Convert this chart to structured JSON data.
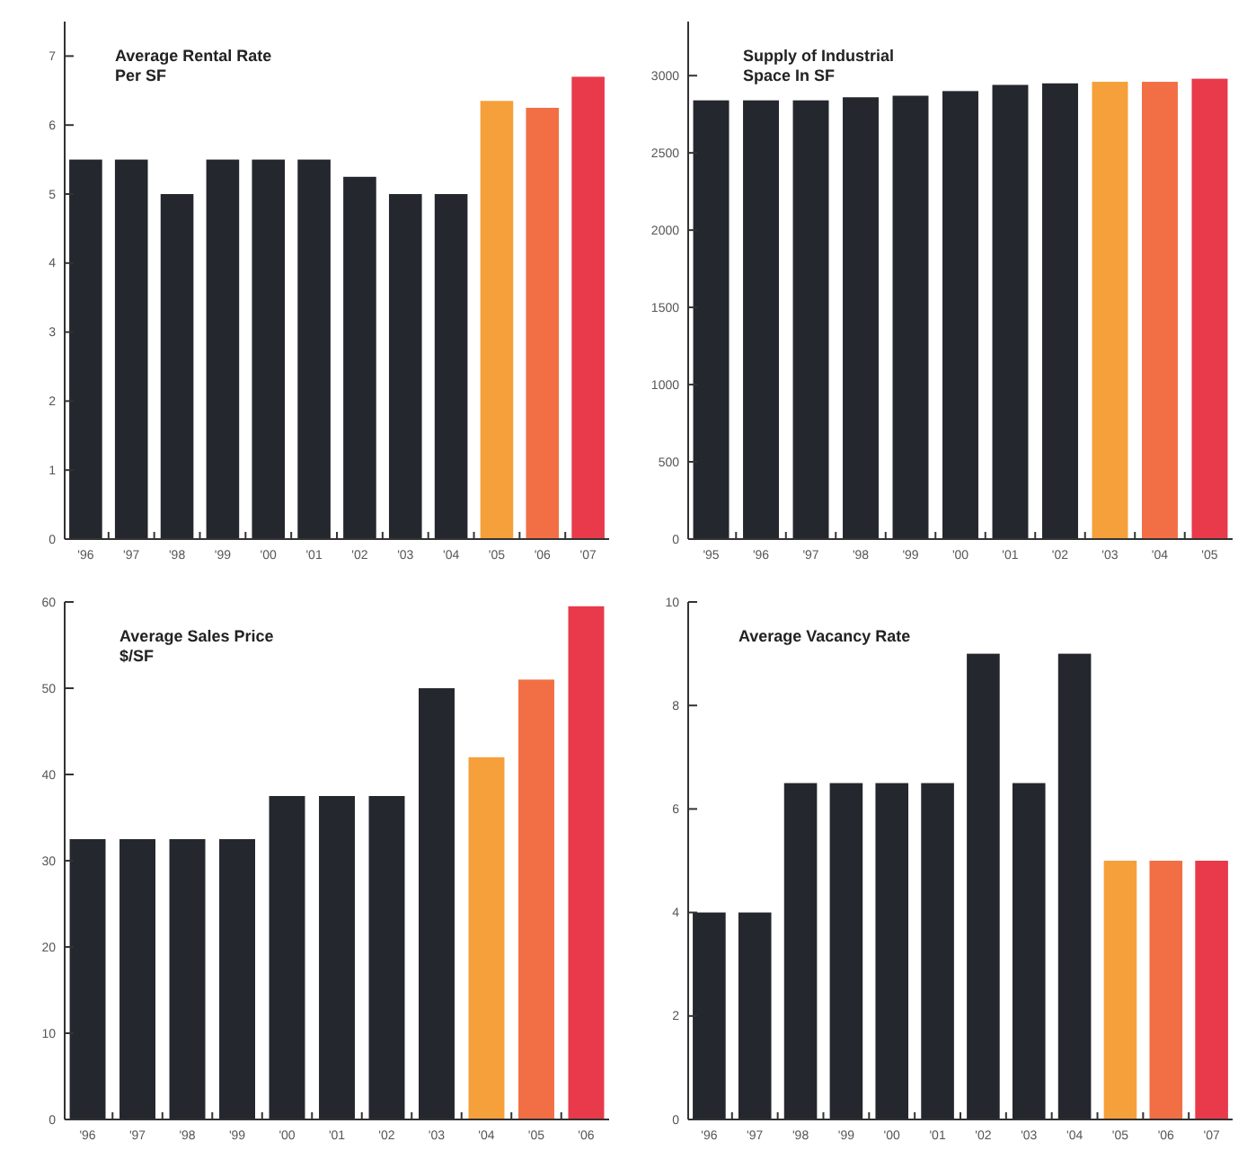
{
  "chart_data": [
    {
      "type": "bar",
      "title": "Average Rental Rate Per SF",
      "categories": [
        "'96",
        "'97",
        "'98",
        "'99",
        "'00",
        "'01",
        "'02",
        "'03",
        "'04",
        "'05",
        "'06",
        "'07"
      ],
      "values": [
        5.5,
        5.5,
        5.0,
        5.5,
        5.5,
        5.5,
        5.25,
        5.0,
        5.0,
        6.35,
        6.25,
        6.7
      ],
      "colors": [
        "#24272d",
        "#24272d",
        "#24272d",
        "#24272d",
        "#24272d",
        "#24272d",
        "#24272d",
        "#24272d",
        "#24272d",
        "#f5a03a",
        "#f26f45",
        "#e83a4a"
      ],
      "ylim": [
        0,
        7.5
      ],
      "yticks": [
        0,
        1,
        2,
        3,
        4,
        5,
        6,
        7
      ],
      "grid": false
    },
    {
      "type": "bar",
      "title": "Supply of Industrial Space In SF",
      "categories": [
        "'95",
        "'96",
        "'97",
        "'98",
        "'99",
        "'00",
        "'01",
        "'02",
        "'03",
        "'04",
        "'05"
      ],
      "values": [
        2840,
        2840,
        2840,
        2860,
        2870,
        2900,
        2940,
        2950,
        2960,
        2960,
        2980
      ],
      "colors": [
        "#24272d",
        "#24272d",
        "#24272d",
        "#24272d",
        "#24272d",
        "#24272d",
        "#24272d",
        "#24272d",
        "#f5a03a",
        "#f26f45",
        "#e83a4a"
      ],
      "ylim": [
        0,
        3350
      ],
      "yticks": [
        0,
        500,
        1000,
        1500,
        2000,
        2500,
        3000
      ],
      "grid": false
    },
    {
      "type": "bar",
      "title": "Average Sales Price $/SF",
      "categories": [
        "'96",
        "'97",
        "'98",
        "'99",
        "'00",
        "'01",
        "'02",
        "'03",
        "'04",
        "'05",
        "'06"
      ],
      "values": [
        32.5,
        32.5,
        32.5,
        32.5,
        37.5,
        37.5,
        37.5,
        50,
        42,
        51,
        59.5
      ],
      "colors": [
        "#24272d",
        "#24272d",
        "#24272d",
        "#24272d",
        "#24272d",
        "#24272d",
        "#24272d",
        "#24272d",
        "#f5a03a",
        "#f26f45",
        "#e83a4a"
      ],
      "ylim": [
        0,
        60
      ],
      "yticks": [
        0,
        10,
        20,
        30,
        40,
        50,
        60
      ],
      "grid": false
    },
    {
      "type": "bar",
      "title": "Average Vacancy Rate",
      "categories": [
        "'96",
        "'97",
        "'98",
        "'99",
        "'00",
        "'01",
        "'02",
        "'03",
        "'04",
        "'05",
        "'06",
        "'07"
      ],
      "values": [
        4,
        4,
        6.5,
        6.5,
        6.5,
        6.5,
        9,
        6.5,
        9,
        5,
        5,
        5
      ],
      "colors": [
        "#24272d",
        "#24272d",
        "#24272d",
        "#24272d",
        "#24272d",
        "#24272d",
        "#24272d",
        "#24272d",
        "#24272d",
        "#f5a03a",
        "#f26f45",
        "#e83a4a"
      ],
      "ylim": [
        0,
        10
      ],
      "yticks": [
        0,
        2,
        4,
        6,
        8,
        10
      ],
      "grid": false
    }
  ]
}
